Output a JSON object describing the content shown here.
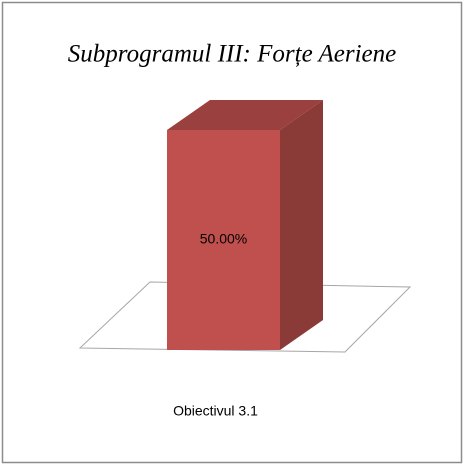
{
  "chart_data": {
    "type": "bar3d",
    "title": "Subprogramul III: Forțe Aeriene",
    "categories": [
      "Obiectivul 3.1"
    ],
    "values": [
      50
    ],
    "value_labels": [
      "50.00%"
    ],
    "color": "#c0504d",
    "ylim": [
      0,
      60
    ]
  }
}
